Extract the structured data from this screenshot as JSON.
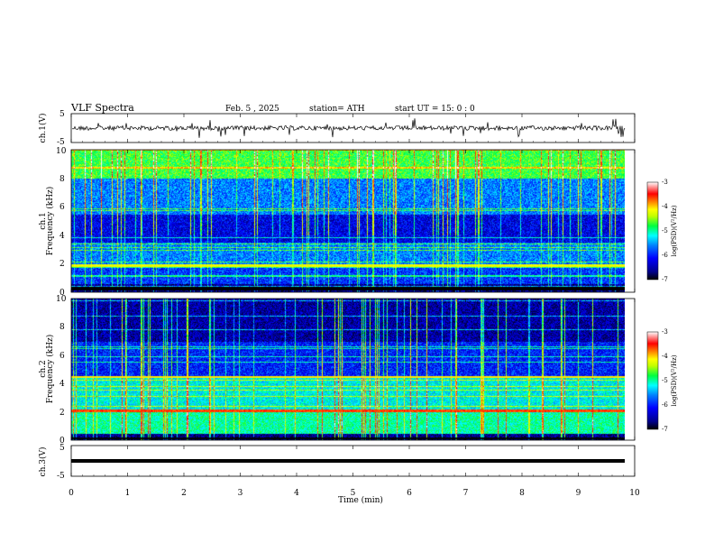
{
  "header": {
    "title": "VLF  Spectra",
    "date": "Feb. 5  , 2025",
    "station": "station= ATH",
    "start": "start  UT  =    15: 0   : 0"
  },
  "chart_data": [
    {
      "id": "ch1-waveform",
      "type": "line",
      "ylabel": "ch.1(V)",
      "yticks": [
        "5",
        "-5"
      ],
      "ylim": [
        -5,
        5
      ],
      "xlim": [
        0,
        10
      ],
      "trace_color": "#000000"
    },
    {
      "id": "ch1-spectrogram",
      "type": "heatmap",
      "ylabel": "ch.1 Frequency (kHz)",
      "ylabel_line1": "ch.1",
      "ylabel_line2": "Frequency  (kHz)",
      "yticks": [
        "0",
        "2",
        "4",
        "6",
        "8",
        "10"
      ],
      "ylim": [
        0,
        10
      ],
      "xlim": [
        0,
        10
      ],
      "colorbar": {
        "label": "log(PSD)(V²/Hz)",
        "ticks": [
          "-3",
          "-4",
          "-5",
          "-6",
          "-7"
        ],
        "range": [
          -7,
          -3
        ],
        "colors": [
          "#000000",
          "#0000a0",
          "#0000ff",
          "#00a0ff",
          "#00ffff",
          "#00ff00",
          "#ffff00",
          "#ff8000",
          "#ff0000",
          "#ffffff"
        ]
      }
    },
    {
      "id": "ch2-spectrogram",
      "type": "heatmap",
      "ylabel": "ch.2 Frequency (kHz)",
      "ylabel_line1": "ch.2",
      "ylabel_line2": "Frequency  (kHz)",
      "yticks": [
        "0",
        "2",
        "4",
        "6",
        "8",
        "10"
      ],
      "ylim": [
        0,
        10
      ],
      "xlim": [
        0,
        10
      ],
      "colorbar": {
        "label": "log(PSD)(V²/Hz)",
        "ticks": [
          "-3",
          "-4",
          "-5",
          "-6",
          "-7"
        ],
        "range": [
          -7,
          -3
        ]
      }
    },
    {
      "id": "ch3-waveform",
      "type": "line",
      "ylabel": "ch.3(V)",
      "yticks": [
        "5",
        "-5"
      ],
      "ylim": [
        -5,
        5
      ],
      "xlim": [
        0,
        10
      ],
      "xlabel": "Time  (min)",
      "xticks": [
        "0",
        "1",
        "2",
        "3",
        "4",
        "5",
        "6",
        "7",
        "8",
        "9",
        "10"
      ],
      "trace_color": "#000000"
    }
  ]
}
